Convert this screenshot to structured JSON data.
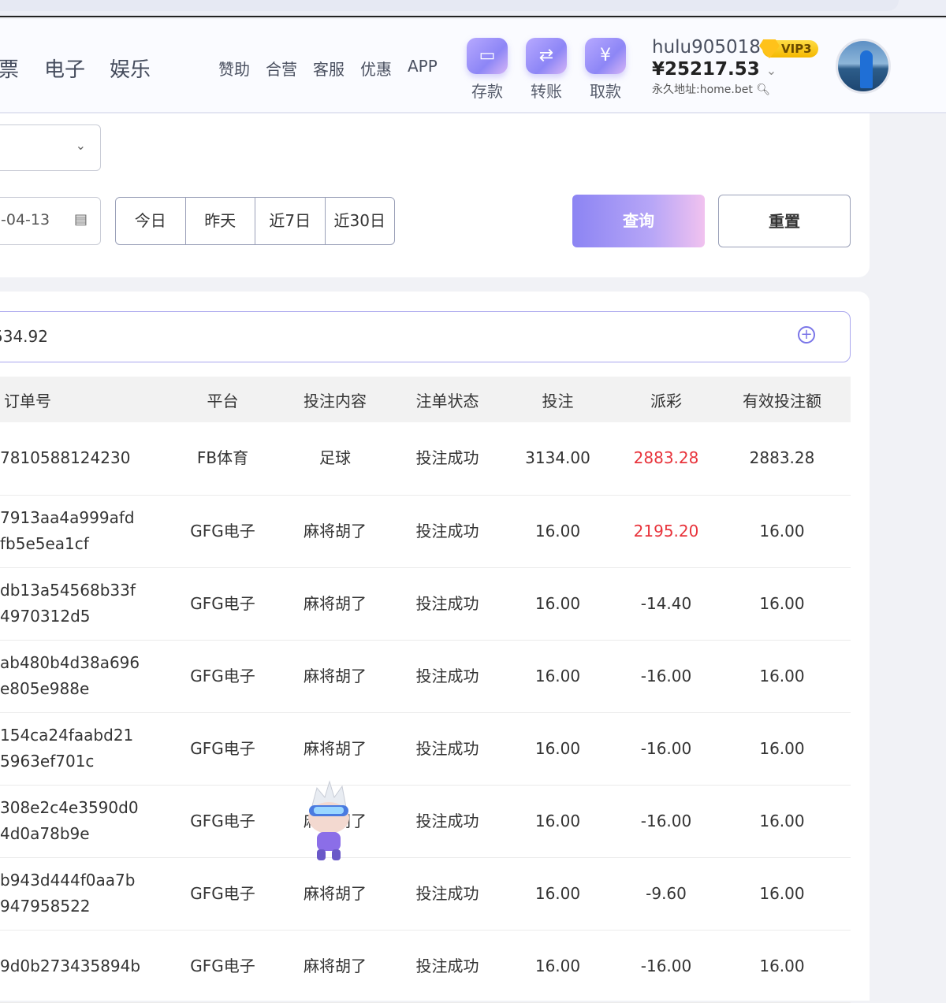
{
  "nav": {
    "main": [
      "票",
      "电子",
      "娱乐"
    ],
    "sub": [
      "赞助",
      "合营",
      "客服",
      "优惠",
      "APP"
    ]
  },
  "actions": [
    {
      "label": "存款",
      "icon": "wallet-icon"
    },
    {
      "label": "转账",
      "icon": "transfer-icon"
    },
    {
      "label": "取款",
      "icon": "yen-icon"
    }
  ],
  "user": {
    "name": "hulu905018",
    "vip": "VIP3",
    "balance": "¥25217.53",
    "address": "永久地址:home.bet"
  },
  "filters": {
    "date_end": "-04-13",
    "quick": [
      "今日",
      "昨天",
      "近7日",
      "近30日"
    ],
    "query": "查询",
    "reset": "重置"
  },
  "search": {
    "value": "534.92"
  },
  "table": {
    "headers": [
      "订单号",
      "平台",
      "投注内容",
      "注单状态",
      "投注",
      "派彩",
      "有效投注额"
    ],
    "rows": [
      {
        "order": [
          "7810588124230"
        ],
        "platform": "FB体育",
        "content": "足球",
        "status": "投注成功",
        "bet": "3134.00",
        "payout": "2883.28",
        "valid": "2883.28",
        "win": true
      },
      {
        "order": [
          "7913aa4a999afd",
          "fb5e5ea1cf"
        ],
        "platform": "GFG电子",
        "content": "麻将胡了",
        "status": "投注成功",
        "bet": "16.00",
        "payout": "2195.20",
        "valid": "16.00",
        "win": true
      },
      {
        "order": [
          "db13a54568b33f",
          "4970312d5"
        ],
        "platform": "GFG电子",
        "content": "麻将胡了",
        "status": "投注成功",
        "bet": "16.00",
        "payout": "-14.40",
        "valid": "16.00"
      },
      {
        "order": [
          "ab480b4d38a696",
          "e805e988e"
        ],
        "platform": "GFG电子",
        "content": "麻将胡了",
        "status": "投注成功",
        "bet": "16.00",
        "payout": "-16.00",
        "valid": "16.00"
      },
      {
        "order": [
          "154ca24faabd21",
          "5963ef701c"
        ],
        "platform": "GFG电子",
        "content": "麻将胡了",
        "status": "投注成功",
        "bet": "16.00",
        "payout": "-16.00",
        "valid": "16.00"
      },
      {
        "order": [
          "308e2c4e3590d0",
          "4d0a78b9e"
        ],
        "platform": "GFG电子",
        "content": "麻将胡了",
        "status": "投注成功",
        "bet": "16.00",
        "payout": "-16.00",
        "valid": "16.00"
      },
      {
        "order": [
          "b943d444f0aa7b",
          "947958522"
        ],
        "platform": "GFG电子",
        "content": "麻将胡了",
        "status": "投注成功",
        "bet": "16.00",
        "payout": "-9.60",
        "valid": "16.00"
      },
      {
        "order": [
          "9d0b273435894b",
          ""
        ],
        "platform": "GFG电子",
        "content": "麻将胡了",
        "status": "投注成功",
        "bet": "16.00",
        "payout": "-16.00",
        "valid": "16.00"
      }
    ]
  }
}
